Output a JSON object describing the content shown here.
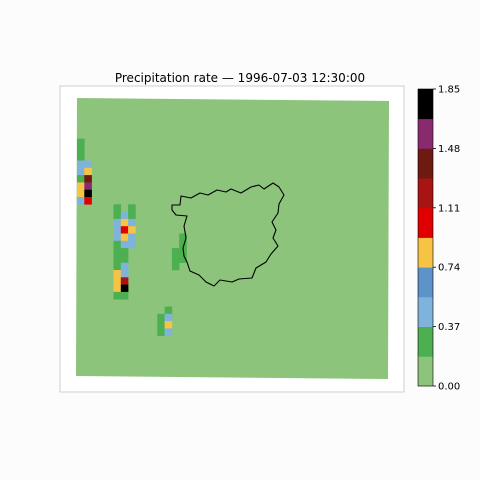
{
  "chart_data": {
    "type": "heatmap",
    "title": "Precipitation rate — 1996-07-03 12:30:00",
    "xlabel": "",
    "ylabel": "",
    "grid": false,
    "colorbar": {
      "vmin": 0.0,
      "vmax": 1.85,
      "tick_labels": [
        "0.00",
        "0.37",
        "0.74",
        "1.11",
        "1.48",
        "1.85"
      ],
      "tick_values": [
        0.0,
        0.37,
        0.74,
        1.11,
        1.48,
        1.85
      ],
      "levels": 10,
      "colors": [
        "#8cc47c",
        "#4caf50",
        "#7fb3dc",
        "#5d93c8",
        "#f6c344",
        "#e00000",
        "#a81414",
        "#6e1a10",
        "#8a2a6e",
        "#000000"
      ]
    },
    "cells_note_units": "grid cells (column, row) on a 30 x 26 model grid, row 0 at top; value = precipitation rate",
    "background_value": 0.05,
    "cells": [
      {
        "c": 0,
        "r": 2,
        "v": 0.25
      },
      {
        "c": 0,
        "r": 3,
        "v": 0.25
      },
      {
        "c": 0,
        "r": 4,
        "v": 0.25
      },
      {
        "c": 0,
        "r": 5,
        "v": 0.45
      },
      {
        "c": 1,
        "r": 5,
        "v": 0.55
      },
      {
        "c": 0,
        "r": 6,
        "v": 0.55
      },
      {
        "c": 1,
        "r": 6,
        "v": 0.9
      },
      {
        "c": 0,
        "r": 7,
        "v": 0.35
      },
      {
        "c": 1,
        "r": 7,
        "v": 1.3
      },
      {
        "c": 0,
        "r": 8,
        "v": 0.9
      },
      {
        "c": 1,
        "r": 8,
        "v": 1.55
      },
      {
        "c": 0,
        "r": 9,
        "v": 0.9
      },
      {
        "c": 1,
        "r": 9,
        "v": 1.8
      },
      {
        "c": 0,
        "r": 10,
        "v": 0.55
      },
      {
        "c": 1,
        "r": 10,
        "v": 1.1
      },
      {
        "c": 5,
        "r": 11,
        "v": 0.25
      },
      {
        "c": 7,
        "r": 11,
        "v": 0.25
      },
      {
        "c": 5,
        "r": 12,
        "v": 0.25
      },
      {
        "c": 6,
        "r": 12,
        "v": 0.55
      },
      {
        "c": 7,
        "r": 12,
        "v": 0.35
      },
      {
        "c": 5,
        "r": 13,
        "v": 0.45
      },
      {
        "c": 6,
        "r": 13,
        "v": 0.8
      },
      {
        "c": 7,
        "r": 13,
        "v": 0.45
      },
      {
        "c": 5,
        "r": 14,
        "v": 0.45
      },
      {
        "c": 6,
        "r": 14,
        "v": 1.1
      },
      {
        "c": 7,
        "r": 14,
        "v": 0.9
      },
      {
        "c": 5,
        "r": 15,
        "v": 0.55
      },
      {
        "c": 6,
        "r": 15,
        "v": 0.8
      },
      {
        "c": 7,
        "r": 15,
        "v": 0.45
      },
      {
        "c": 5,
        "r": 16,
        "v": 0.25
      },
      {
        "c": 6,
        "r": 16,
        "v": 0.45
      },
      {
        "c": 7,
        "r": 16,
        "v": 0.55
      },
      {
        "c": 5,
        "r": 17,
        "v": 0.25
      },
      {
        "c": 6,
        "r": 17,
        "v": 0.25
      },
      {
        "c": 5,
        "r": 18,
        "v": 0.25
      },
      {
        "c": 6,
        "r": 18,
        "v": 0.25
      },
      {
        "c": 5,
        "r": 19,
        "v": 0.25
      },
      {
        "c": 6,
        "r": 19,
        "v": 0.45
      },
      {
        "c": 5,
        "r": 20,
        "v": 0.8
      },
      {
        "c": 6,
        "r": 20,
        "v": 0.55
      },
      {
        "c": 5,
        "r": 21,
        "v": 0.9
      },
      {
        "c": 6,
        "r": 21,
        "v": 1.2
      },
      {
        "c": 5,
        "r": 22,
        "v": 0.8
      },
      {
        "c": 6,
        "r": 22,
        "v": 1.8
      },
      {
        "c": 5,
        "r": 23,
        "v": 0.25
      },
      {
        "c": 6,
        "r": 23,
        "v": 0.25
      },
      {
        "c": 12,
        "r": 25,
        "v": 0.25
      },
      {
        "c": 11,
        "r": 26,
        "v": 0.25
      },
      {
        "c": 12,
        "r": 26,
        "v": 0.55
      },
      {
        "c": 11,
        "r": 27,
        "v": 0.25
      },
      {
        "c": 12,
        "r": 27,
        "v": 0.8
      },
      {
        "c": 11,
        "r": 28,
        "v": 0.25
      },
      {
        "c": 12,
        "r": 28,
        "v": 0.55
      },
      {
        "c": 14,
        "r": 15,
        "v": 0.25
      },
      {
        "c": 14,
        "r": 16,
        "v": 0.25
      },
      {
        "c": 13,
        "r": 17,
        "v": 0.25
      },
      {
        "c": 14,
        "r": 17,
        "v": 0.25
      },
      {
        "c": 13,
        "r": 18,
        "v": 0.25
      },
      {
        "c": 14,
        "r": 18,
        "v": 0.25
      },
      {
        "c": 13,
        "r": 19,
        "v": 0.25
      }
    ]
  }
}
